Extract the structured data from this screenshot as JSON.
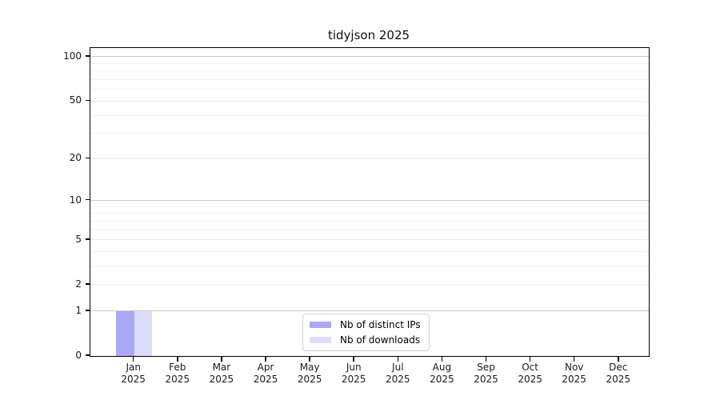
{
  "chart_data": {
    "type": "bar",
    "title": "tidyjson 2025",
    "categories": [
      {
        "month": "Jan",
        "year": "2025"
      },
      {
        "month": "Feb",
        "year": "2025"
      },
      {
        "month": "Mar",
        "year": "2025"
      },
      {
        "month": "Apr",
        "year": "2025"
      },
      {
        "month": "May",
        "year": "2025"
      },
      {
        "month": "Jun",
        "year": "2025"
      },
      {
        "month": "Jul",
        "year": "2025"
      },
      {
        "month": "Aug",
        "year": "2025"
      },
      {
        "month": "Sep",
        "year": "2025"
      },
      {
        "month": "Oct",
        "year": "2025"
      },
      {
        "month": "Nov",
        "year": "2025"
      },
      {
        "month": "Dec",
        "year": "2025"
      }
    ],
    "series": [
      {
        "name": "Nb of distinct IPs",
        "color": "#a7a9f5",
        "values": [
          1,
          0,
          0,
          0,
          0,
          0,
          0,
          0,
          0,
          0,
          0,
          0
        ]
      },
      {
        "name": "Nb of downloads",
        "color": "#dcddfa",
        "values": [
          1,
          0,
          0,
          0,
          0,
          0,
          0,
          0,
          0,
          0,
          0,
          0
        ]
      }
    ],
    "y_axis": {
      "scale": "log1p",
      "range": [
        0,
        100
      ],
      "ticks": [
        0,
        1,
        2,
        5,
        10,
        20,
        50,
        100
      ],
      "minor_ticks": [
        3,
        4,
        6,
        7,
        8,
        9,
        30,
        40,
        60,
        70,
        80,
        90
      ]
    },
    "grid": "horizontal",
    "legend_position": "bottom-center",
    "colors": {
      "grid_decade": "#c9c9c9",
      "grid_major": "#e8e8e8",
      "grid_minor": "#f2f2f2",
      "axis": "#000000"
    }
  }
}
